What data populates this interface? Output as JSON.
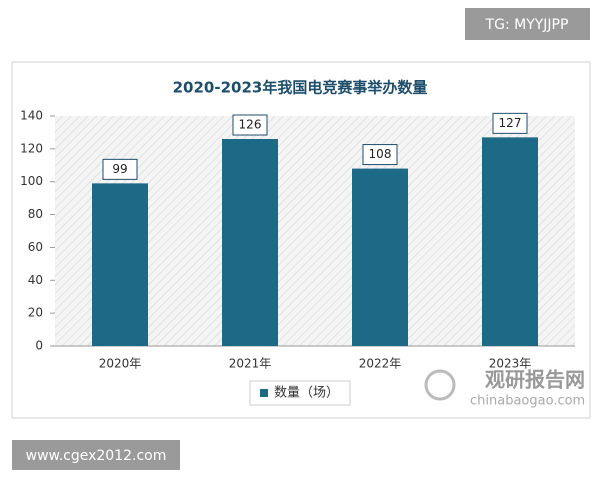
{
  "chart_data": {
    "type": "bar",
    "title": "2020-2023年我国电竞赛事举办数量",
    "categories": [
      "2020年",
      "2021年",
      "2022年",
      "2023年"
    ],
    "series": [
      {
        "name": "数量（场）",
        "color": "#1d6a87",
        "values": [
          99,
          126,
          108,
          127
        ]
      }
    ],
    "ylim": [
      0,
      140
    ],
    "yticks": [
      0,
      20,
      40,
      60,
      80,
      100,
      120,
      140
    ],
    "grid": false
  },
  "watermark": {
    "name": "观研报告网",
    "url": "chinabaogao.com"
  },
  "badges": {
    "top": "TG: MYYJJPP",
    "bottom": "www.cgex2012.com"
  }
}
